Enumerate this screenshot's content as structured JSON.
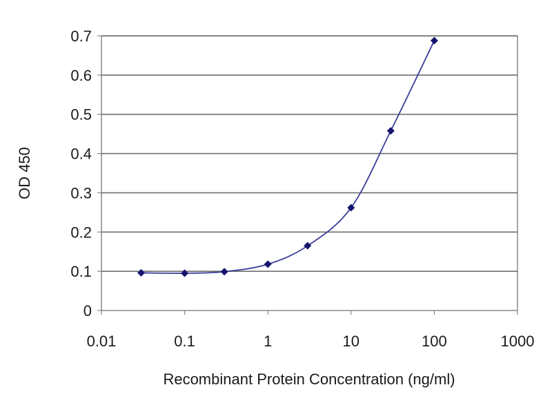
{
  "chart_data": {
    "type": "line",
    "title": "",
    "xlabel": "Recombinant Protein Concentration (ng/ml)",
    "ylabel": "OD 450",
    "xscale": "log",
    "xlim": [
      0.01,
      1000
    ],
    "ylim": [
      0,
      0.7
    ],
    "x_ticks": [
      "0.01",
      "0.1",
      "1",
      "10",
      "100",
      "1000"
    ],
    "y_ticks": [
      "0",
      "0.1",
      "0.2",
      "0.3",
      "0.4",
      "0.5",
      "0.6",
      "0.7"
    ],
    "grid": "horizontal",
    "legend": "none",
    "series": [
      {
        "x": [
          0.03,
          0.1,
          0.3,
          1,
          3,
          10,
          30,
          100
        ],
        "y": [
          0.096,
          0.095,
          0.099,
          0.118,
          0.165,
          0.262,
          0.458,
          0.688
        ]
      }
    ],
    "colors": {
      "line": "#3a3a9a",
      "marker": "#14146e",
      "grid": "#6e6e6e",
      "frame": "#8a8a8a",
      "text": "#1a1a1a"
    }
  }
}
